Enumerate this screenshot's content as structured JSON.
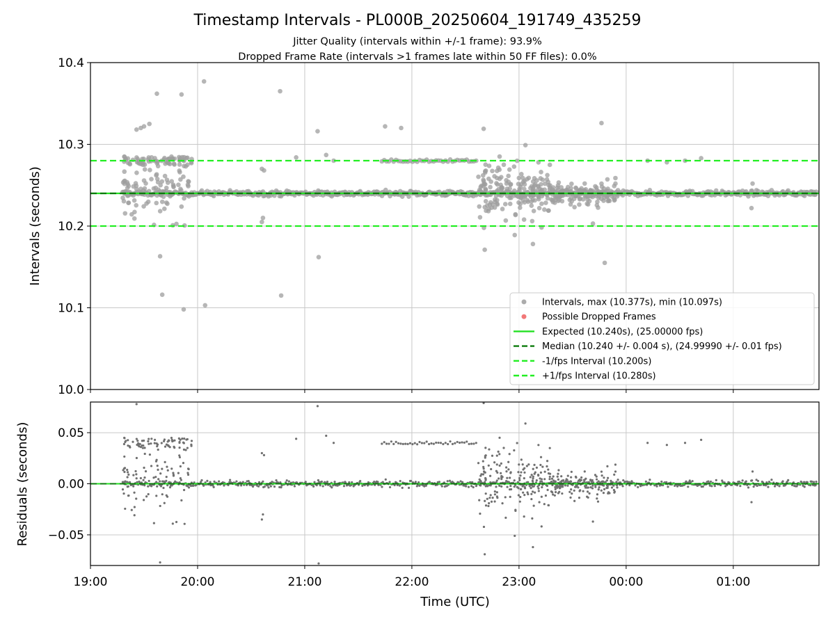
{
  "chart_data": [
    {
      "type": "scatter",
      "title": "Timestamp Intervals - PL000B_20250604_191749_435259",
      "subtitle_lines": [
        "Jitter Quality (intervals within +/-1 frame): 93.9%",
        "Dropped Frame Rate (intervals >1 frames late within 50 FF files): 0.0%"
      ],
      "xlabel": "",
      "ylabel": "Intervals (seconds)",
      "ylim": [
        10.0,
        10.4
      ],
      "yticks": [
        10.0,
        10.1,
        10.2,
        10.3,
        10.4
      ],
      "ytick_labels": [
        "10.0",
        "10.1",
        "10.2",
        "10.3",
        "10.4"
      ],
      "xlim_hours": [
        19.0,
        25.8
      ],
      "xticks": [
        19,
        20,
        21,
        22,
        23,
        24,
        25
      ],
      "grid": true,
      "legend_position": "lower-right",
      "legend": [
        {
          "kind": "marker",
          "color": "#9e9e9e",
          "label": "Intervals, max (10.377s), min (10.097s)"
        },
        {
          "kind": "marker",
          "color": "#f06060",
          "label": "Possible Dropped Frames"
        },
        {
          "kind": "solid",
          "color": "#22e022",
          "label": "Expected (10.240s), (25.00000 fps)"
        },
        {
          "kind": "dashed",
          "color": "#0b7a0b",
          "label": "Median (10.240 +/- 0.004 s), (24.99990 +/- 0.01 fps)"
        },
        {
          "kind": "dashed",
          "color": "#22ee22",
          "label": "-1/fps Interval (10.200s)"
        },
        {
          "kind": "dashed",
          "color": "#22ee22",
          "label": "+1/fps Interval (10.280s)"
        }
      ],
      "reference_lines": {
        "expected": 10.24,
        "median": 10.24,
        "minus_one_fps": 10.2,
        "plus_one_fps": 10.28
      },
      "highlighted_points": [
        [
          19.47,
          10.32
        ],
        [
          19.43,
          10.318
        ],
        [
          19.5,
          10.322
        ],
        [
          19.55,
          10.325
        ],
        [
          19.62,
          10.362
        ],
        [
          19.85,
          10.361
        ],
        [
          20.06,
          10.377
        ],
        [
          20.77,
          10.365
        ],
        [
          21.12,
          10.316
        ],
        [
          21.75,
          10.322
        ],
        [
          21.9,
          10.32
        ],
        [
          22.67,
          10.319
        ],
        [
          23.06,
          10.299
        ],
        [
          23.77,
          10.326
        ],
        [
          19.67,
          10.116
        ],
        [
          19.87,
          10.098
        ],
        [
          20.07,
          10.103
        ],
        [
          20.78,
          10.115
        ],
        [
          21.13,
          10.162
        ],
        [
          19.65,
          10.163
        ],
        [
          23.8,
          10.155
        ],
        [
          22.68,
          10.171
        ],
        [
          23.13,
          10.178
        ],
        [
          22.96,
          10.189
        ],
        [
          23.69,
          10.203
        ],
        [
          20.6,
          10.205
        ],
        [
          20.61,
          10.21
        ]
      ],
      "colors": {
        "points": "#9e9e9e",
        "expected": "#22e022",
        "median": "#0b7a0b",
        "fps_bounds": "#22ee22"
      }
    },
    {
      "type": "scatter",
      "title": "",
      "xlabel": "Time (UTC)",
      "ylabel": "Residuals (seconds)",
      "ylim": [
        -0.08,
        0.08
      ],
      "yticks": [
        0.05,
        0.0,
        -0.05
      ],
      "ytick_labels": [
        "0.05",
        "0.00",
        "−0.05"
      ],
      "xlim_hours": [
        19.0,
        25.8
      ],
      "xticks": [
        19,
        20,
        21,
        22,
        23,
        24,
        25
      ],
      "xtick_labels": [
        "19:00",
        "20:00",
        "21:00",
        "22:00",
        "23:00",
        "00:00",
        "01:00"
      ],
      "grid": true,
      "reference_lines": {
        "zero": 0.0
      },
      "colors": {
        "points": "#707070",
        "expected": "#22e022",
        "median": "#0b7a0b"
      }
    }
  ]
}
